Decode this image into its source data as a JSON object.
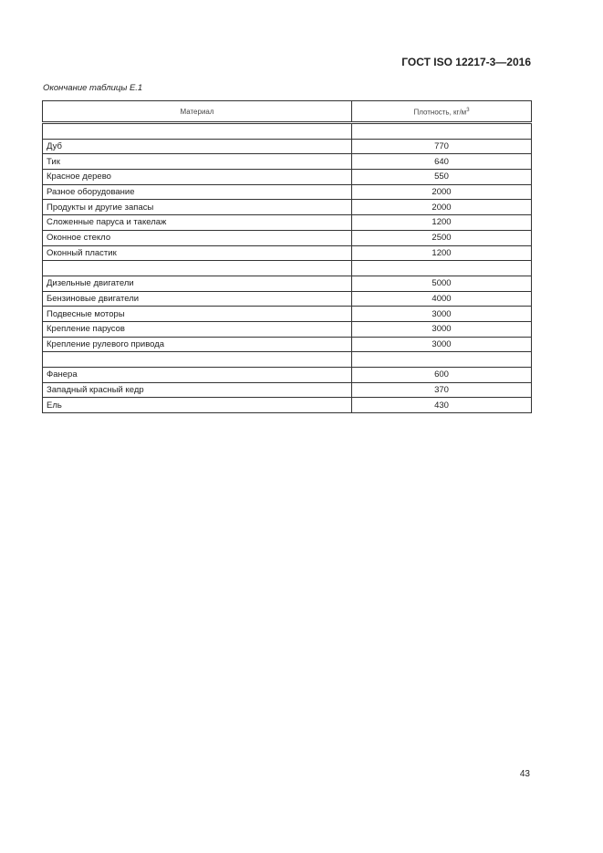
{
  "header": {
    "doc_code": "ГОСТ ISO 12217-3—2016"
  },
  "caption": "Окончание таблицы Е.1",
  "table": {
    "columns": [
      "Материал",
      "Плотность, кг/м",
      "3"
    ],
    "rows": [
      [
        "",
        ""
      ],
      [
        "Дуб",
        "770"
      ],
      [
        "Тик",
        "640"
      ],
      [
        "Красное дерево",
        "550"
      ],
      [
        "Разное оборудование",
        "2000"
      ],
      [
        "Продукты и другие запасы",
        "2000"
      ],
      [
        "Сложенные паруса и такелаж",
        "1200"
      ],
      [
        "Оконное стекло",
        "2500"
      ],
      [
        "Оконный пластик",
        "1200"
      ],
      [
        "",
        ""
      ],
      [
        "Дизельные двигатели",
        "5000"
      ],
      [
        "Бензиновые двигатели",
        "4000"
      ],
      [
        "Подвесные моторы",
        "3000"
      ],
      [
        "Крепление парусов",
        "3000"
      ],
      [
        "Крепление рулевого привода",
        "3000"
      ],
      [
        "",
        ""
      ],
      [
        "Фанера",
        "600"
      ],
      [
        "Западный красный кедр",
        "370"
      ],
      [
        "Ель",
        "430"
      ]
    ]
  },
  "footer": {
    "page_number": "43"
  }
}
